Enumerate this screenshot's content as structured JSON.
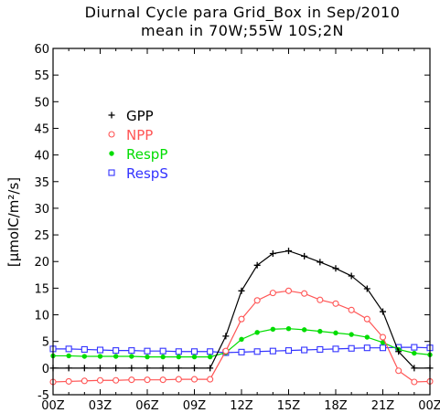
{
  "chart_data": {
    "type": "line",
    "title": "Diurnal Cycle para Grid_Box in Sep/2010",
    "subtitle": "mean in 70W;55W 10S;2N",
    "xlabel": "",
    "ylabel": "[μmolC/m²/s]",
    "xlim": [
      0,
      24
    ],
    "ylim": [
      -5,
      60
    ],
    "x_ticks": [
      0,
      3,
      6,
      9,
      12,
      15,
      18,
      21,
      24
    ],
    "x_tick_labels": [
      "00Z",
      "03Z",
      "06Z",
      "09Z",
      "12Z",
      "15Z",
      "18Z",
      "21Z",
      "00Z"
    ],
    "y_ticks": [
      -5,
      0,
      5,
      10,
      15,
      20,
      25,
      30,
      35,
      40,
      45,
      50,
      55,
      60
    ],
    "y_tick_labels": [
      "-5",
      "0",
      "5",
      "10",
      "15",
      "20",
      "25",
      "30",
      "35",
      "40",
      "45",
      "50",
      "55",
      "60"
    ],
    "legend_position": "upper-left",
    "x": [
      0,
      1,
      2,
      3,
      4,
      5,
      6,
      7,
      8,
      9,
      10,
      11,
      12,
      13,
      14,
      15,
      16,
      17,
      18,
      19,
      20,
      21,
      22,
      23,
      24
    ],
    "series": [
      {
        "name": "GPP",
        "color": "#000000",
        "marker": "plus",
        "values": [
          0,
          0,
          0,
          0,
          0,
          0,
          0,
          0,
          0,
          0,
          0,
          6.0,
          14.5,
          19.3,
          21.5,
          22.0,
          21.0,
          19.9,
          18.7,
          17.3,
          14.9,
          10.6,
          3.1,
          0,
          0
        ]
      },
      {
        "name": "NPP",
        "color": "#ff5555",
        "marker": "circle",
        "values": [
          -2.6,
          -2.5,
          -2.4,
          -2.3,
          -2.3,
          -2.2,
          -2.2,
          -2.2,
          -2.1,
          -2.1,
          -2.1,
          3.2,
          9.2,
          12.7,
          14.1,
          14.5,
          14.0,
          12.8,
          12.1,
          10.9,
          9.2,
          5.8,
          -0.5,
          -2.6,
          -2.5
        ]
      },
      {
        "name": "RespP",
        "color": "#00dd00",
        "marker": "filled-dot",
        "values": [
          2.3,
          2.3,
          2.2,
          2.2,
          2.2,
          2.2,
          2.1,
          2.1,
          2.1,
          2.1,
          2.1,
          2.9,
          5.4,
          6.7,
          7.3,
          7.4,
          7.2,
          6.9,
          6.6,
          6.3,
          5.8,
          4.8,
          3.5,
          2.8,
          2.5
        ]
      },
      {
        "name": "RespS",
        "color": "#3333ff",
        "marker": "square",
        "values": [
          3.6,
          3.6,
          3.5,
          3.4,
          3.3,
          3.3,
          3.2,
          3.2,
          3.1,
          3.1,
          3.1,
          2.9,
          3.0,
          3.1,
          3.2,
          3.3,
          3.4,
          3.5,
          3.6,
          3.7,
          3.8,
          3.8,
          3.9,
          3.9,
          3.8
        ]
      }
    ]
  }
}
